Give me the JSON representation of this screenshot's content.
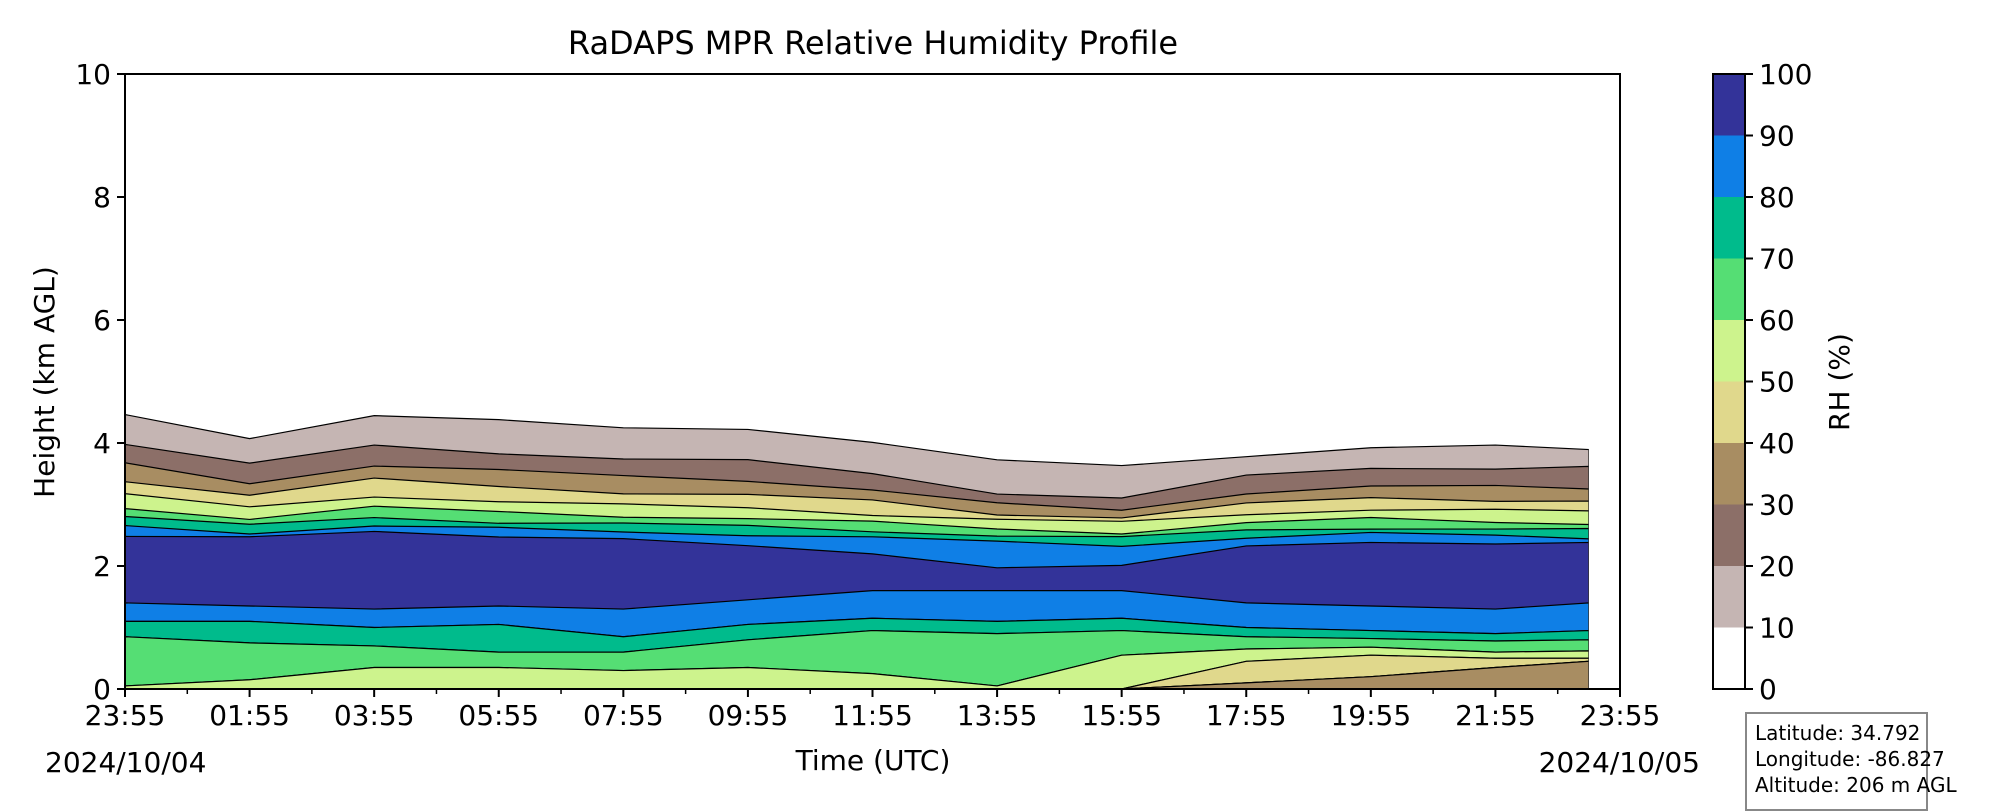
{
  "chart_data": {
    "type": "heatmap",
    "title": "RaDAPS MPR Relative Humidity Profile",
    "xlabel": "Time (UTC)",
    "ylabel": "Height (km AGL)",
    "x_ticks": [
      "23:55",
      "01:55",
      "03:55",
      "05:55",
      "07:55",
      "09:55",
      "11:55",
      "13:55",
      "15:55",
      "17:55",
      "19:55",
      "21:55",
      "23:55"
    ],
    "date_start": "2024/10/04",
    "date_end": "2024/10/05",
    "y_ticks": [
      "0",
      "2",
      "4",
      "6",
      "8",
      "10"
    ],
    "ylim": [
      0,
      10
    ],
    "grid": false,
    "colorbar": {
      "label": "RH (%)",
      "ticks": [
        "0",
        "10",
        "20",
        "30",
        "40",
        "50",
        "60",
        "70",
        "80",
        "90",
        "100"
      ],
      "levels": [
        0,
        10,
        20,
        30,
        40,
        50,
        60,
        70,
        80,
        90,
        100
      ],
      "colors": [
        "#ffffff",
        "#c5b5b3",
        "#8c6f68",
        "#a88d62",
        "#e0d88c",
        "#cdf38d",
        "#55de74",
        "#00bb8c",
        "#0f7fe6",
        "#333399"
      ]
    },
    "approximate_level_heights_km": {
      "times": [
        "23:55",
        "01:55",
        "03:55",
        "05:55",
        "07:55",
        "09:55",
        "11:55",
        "13:55",
        "15:55",
        "17:55",
        "19:55",
        "21:55",
        "23:25"
      ],
      "rh10": [
        4.45,
        4.1,
        4.45,
        4.35,
        4.25,
        4.25,
        4.0,
        3.7,
        3.65,
        3.8,
        3.9,
        3.95,
        3.92
      ],
      "rh20": [
        4.0,
        3.65,
        3.95,
        3.85,
        3.75,
        3.7,
        3.5,
        3.2,
        3.1,
        3.45,
        3.6,
        3.6,
        3.6
      ],
      "rh30": [
        3.65,
        3.35,
        3.65,
        3.55,
        3.45,
        3.4,
        3.25,
        3.0,
        2.9,
        3.2,
        3.3,
        3.28,
        3.26
      ],
      "rh40": [
        3.4,
        3.15,
        3.4,
        3.3,
        3.2,
        3.15,
        3.05,
        2.85,
        2.8,
        3.0,
        3.1,
        3.08,
        3.06
      ],
      "rh50": [
        3.15,
        2.95,
        3.15,
        3.05,
        2.98,
        2.95,
        2.85,
        2.75,
        2.7,
        2.85,
        2.93,
        2.9,
        2.88
      ],
      "rh60": [
        2.95,
        2.78,
        2.95,
        2.87,
        2.82,
        2.78,
        2.7,
        2.6,
        2.55,
        2.7,
        2.76,
        2.72,
        2.7
      ],
      "rh70": [
        2.8,
        2.65,
        2.8,
        2.72,
        2.68,
        2.64,
        2.58,
        2.5,
        2.45,
        2.58,
        2.63,
        2.6,
        2.58
      ],
      "rh80": [
        2.65,
        2.55,
        2.65,
        2.6,
        2.56,
        2.52,
        2.46,
        2.38,
        2.34,
        2.47,
        2.52,
        2.49,
        2.47
      ],
      "rh90_top": [
        2.5,
        2.45,
        2.55,
        2.5,
        2.45,
        2.3,
        2.2,
        2.0,
        2.0,
        2.3,
        2.4,
        2.38,
        2.36
      ],
      "rh90_bottom": [
        1.4,
        1.35,
        1.3,
        1.35,
        1.3,
        1.45,
        1.6,
        1.6,
        1.6,
        1.4,
        1.35,
        1.3,
        1.4
      ],
      "rh80_low": [
        1.1,
        1.1,
        1.0,
        1.05,
        0.85,
        1.05,
        1.15,
        1.1,
        1.15,
        1.0,
        0.95,
        0.9,
        0.95
      ],
      "rh70_low": [
        0.85,
        0.75,
        0.7,
        0.6,
        0.6,
        0.8,
        0.95,
        0.9,
        0.95,
        0.85,
        0.82,
        0.78,
        0.8
      ],
      "rh60_low": [
        0.05,
        0.15,
        0.35,
        0.35,
        0.3,
        0.35,
        0.25,
        0.05,
        0.55,
        0.65,
        0.68,
        0.6,
        0.62
      ],
      "rh50_low": [
        0.0,
        0.0,
        0.0,
        0.0,
        0.0,
        0.0,
        0.0,
        0.0,
        0.0,
        0.45,
        0.55,
        0.5,
        0.5
      ],
      "rh40_low": [
        0.0,
        0.0,
        0.0,
        0.0,
        0.0,
        0.0,
        0.0,
        0.0,
        0.0,
        0.1,
        0.2,
        0.35,
        0.45
      ]
    }
  },
  "site_info": {
    "latitude": "Latitude: 34.792",
    "longitude": "Longitude: -86.827",
    "altitude": "Altitude: 206 m AGL"
  }
}
